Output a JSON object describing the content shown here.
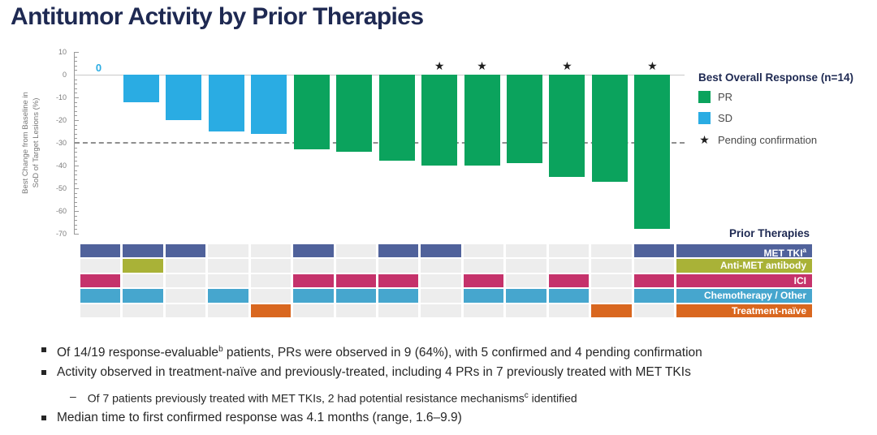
{
  "title": "Antitumor Activity by Prior Therapies",
  "colors": {
    "title_navy": "#1E2952",
    "empty_cell": "#EDEDED",
    "axis_gray": "#999999",
    "zero_line": "#c9c9c9",
    "text_dark": "#262626"
  },
  "chart_data": {
    "type": "bar",
    "title": "Antitumor Activity by Prior Therapies",
    "ylabel_line1": "Best Change from Baseline in",
    "ylabel_line2": "SoD of Target Lesions (%)",
    "ylim": [
      -70,
      10
    ],
    "yticks": [
      10,
      0,
      -10,
      -20,
      -30,
      -40,
      -50,
      -60,
      -70
    ],
    "reference_line_y": -30,
    "zero_bar_label": "0",
    "pending_symbol": "★",
    "response_colors": {
      "PR": "#0BA35D",
      "SD": "#2AACE3"
    },
    "legend": {
      "title": "Best Overall Response (n=14)",
      "items": [
        {
          "label": "PR",
          "color": "#0BA35D"
        },
        {
          "label": "SD",
          "color": "#2AACE3"
        },
        {
          "label": "Pending confirmation",
          "symbol": "★"
        }
      ]
    },
    "patients": [
      {
        "value": 0,
        "response": "SD",
        "pending": false,
        "therapies": [
          "MET TKI",
          "ICI",
          "Chemotherapy / Other"
        ]
      },
      {
        "value": -12,
        "response": "SD",
        "pending": false,
        "therapies": [
          "MET TKI",
          "Anti-MET antibody",
          "Chemotherapy / Other"
        ]
      },
      {
        "value": -20,
        "response": "SD",
        "pending": false,
        "therapies": [
          "MET TKI"
        ]
      },
      {
        "value": -25,
        "response": "SD",
        "pending": false,
        "therapies": [
          "Chemotherapy / Other"
        ]
      },
      {
        "value": -26,
        "response": "SD",
        "pending": false,
        "therapies": [
          "Treatment-naïve"
        ]
      },
      {
        "value": -33,
        "response": "PR",
        "pending": false,
        "therapies": [
          "MET TKI",
          "ICI",
          "Chemotherapy / Other"
        ]
      },
      {
        "value": -34,
        "response": "PR",
        "pending": false,
        "therapies": [
          "ICI",
          "Chemotherapy / Other"
        ]
      },
      {
        "value": -38,
        "response": "PR",
        "pending": false,
        "therapies": [
          "MET TKI",
          "ICI",
          "Chemotherapy / Other"
        ]
      },
      {
        "value": -40,
        "response": "PR",
        "pending": true,
        "therapies": [
          "MET TKI"
        ]
      },
      {
        "value": -40,
        "response": "PR",
        "pending": true,
        "therapies": [
          "ICI",
          "Chemotherapy / Other"
        ]
      },
      {
        "value": -39,
        "response": "PR",
        "pending": false,
        "therapies": [
          "Chemotherapy / Other"
        ]
      },
      {
        "value": -45,
        "response": "PR",
        "pending": true,
        "therapies": [
          "ICI",
          "Chemotherapy / Other"
        ]
      },
      {
        "value": -47,
        "response": "PR",
        "pending": false,
        "therapies": [
          "Treatment-naïve"
        ]
      },
      {
        "value": -68,
        "response": "PR",
        "pending": true,
        "therapies": [
          "MET TKI",
          "ICI",
          "Chemotherapy / Other"
        ]
      }
    ]
  },
  "prior_therapies": {
    "header": "Prior Therapies",
    "rows": [
      {
        "label": "MET TKI",
        "sup": "a",
        "color": "#50629B"
      },
      {
        "label": "Anti-MET antibody",
        "sup": "",
        "color": "#A9B237"
      },
      {
        "label": "ICI",
        "sup": "",
        "color": "#C5326B"
      },
      {
        "label": "Chemotherapy / Other",
        "sup": "",
        "color": "#46A6CE"
      },
      {
        "label": "Treatment-naïve",
        "sup": "",
        "color": "#D9671F"
      }
    ]
  },
  "bullets": [
    {
      "level": 1,
      "segments": [
        {
          "t": "Of 14/19 response-evaluable"
        },
        {
          "t": "b",
          "sup": true
        },
        {
          "t": " patients, PRs were observed in 9 (64%), with 5 confirmed and 4 pending confirmation"
        }
      ]
    },
    {
      "level": 1,
      "segments": [
        {
          "t": "Activity observed in treatment-naïve and previously-treated, including 4 PRs in 7 previously treated with MET TKIs"
        }
      ]
    },
    {
      "level": 2,
      "segments": [
        {
          "t": "Of 7 patients previously treated with MET TKIs, 2 had potential resistance mechanisms"
        },
        {
          "t": "c",
          "sup": true
        },
        {
          "t": " identified"
        }
      ]
    },
    {
      "level": 1,
      "segments": [
        {
          "t": "Median time to first confirmed response was 4.1 months (range, 1.6–9.9)"
        }
      ]
    }
  ]
}
